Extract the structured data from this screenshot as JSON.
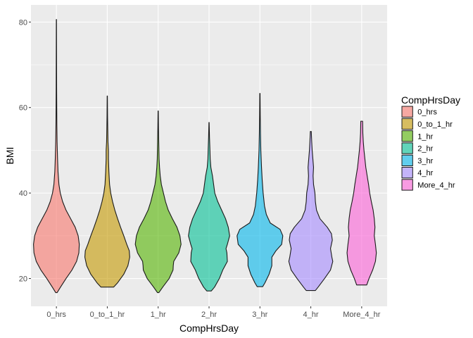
{
  "chart_data": {
    "type": "violin",
    "xlabel": "CompHrsDay",
    "ylabel": "BMI",
    "ylim": [
      13.5,
      84
    ],
    "yticks": [
      20,
      40,
      60,
      80
    ],
    "grid": true,
    "legend": {
      "title": "CompHrsDay",
      "position": "right"
    },
    "categories": [
      "0_hrs",
      "0_to_1_hr",
      "1_hr",
      "2_hr",
      "3_hr",
      "4_hr",
      "More_4_hr"
    ],
    "colors": [
      "#F8766D",
      "#C49A00",
      "#53B400",
      "#00C094",
      "#00B6EB",
      "#A58AFF",
      "#FB61D7"
    ],
    "series": [
      {
        "name": "0_hrs",
        "min": 16.7,
        "max": 80.6,
        "density": [
          [
            16.7,
            0.03
          ],
          [
            18,
            0.18
          ],
          [
            20,
            0.42
          ],
          [
            22,
            0.68
          ],
          [
            24,
            0.88
          ],
          [
            26,
            0.98
          ],
          [
            28,
            1.0
          ],
          [
            30,
            0.95
          ],
          [
            32,
            0.82
          ],
          [
            34,
            0.62
          ],
          [
            36,
            0.42
          ],
          [
            38,
            0.27
          ],
          [
            40,
            0.17
          ],
          [
            42,
            0.11
          ],
          [
            45,
            0.07
          ],
          [
            48,
            0.05
          ],
          [
            52,
            0.03
          ],
          [
            56,
            0.02
          ],
          [
            60,
            0.015
          ],
          [
            65,
            0.01
          ],
          [
            70,
            0.008
          ],
          [
            75,
            0.006
          ],
          [
            80.6,
            0.004
          ]
        ]
      },
      {
        "name": "0_to_1_hr",
        "min": 18.0,
        "max": 62.7,
        "density": [
          [
            18,
            0.28
          ],
          [
            19,
            0.45
          ],
          [
            21,
            0.72
          ],
          [
            23,
            0.9
          ],
          [
            25,
            0.98
          ],
          [
            26.5,
            0.96
          ],
          [
            28,
            0.85
          ],
          [
            30,
            0.72
          ],
          [
            32,
            0.58
          ],
          [
            34,
            0.45
          ],
          [
            36,
            0.33
          ],
          [
            38,
            0.23
          ],
          [
            40,
            0.15
          ],
          [
            42,
            0.1
          ],
          [
            45,
            0.07
          ],
          [
            48,
            0.05
          ],
          [
            50,
            0.05
          ],
          [
            52,
            0.03
          ],
          [
            55,
            0.02
          ],
          [
            58,
            0.012
          ],
          [
            62.7,
            0.005
          ]
        ]
      },
      {
        "name": "1_hr",
        "min": 16.7,
        "max": 59.2,
        "density": [
          [
            16.7,
            0.03
          ],
          [
            18,
            0.2
          ],
          [
            20,
            0.48
          ],
          [
            22,
            0.65
          ],
          [
            23,
            0.66
          ],
          [
            24,
            0.68
          ],
          [
            26,
            0.9
          ],
          [
            28,
            1.0
          ],
          [
            30,
            0.95
          ],
          [
            32,
            0.82
          ],
          [
            34,
            0.62
          ],
          [
            36,
            0.44
          ],
          [
            38,
            0.32
          ],
          [
            40,
            0.23
          ],
          [
            42,
            0.14
          ],
          [
            44,
            0.09
          ],
          [
            46,
            0.06
          ],
          [
            48,
            0.04
          ],
          [
            52,
            0.025
          ],
          [
            55,
            0.015
          ],
          [
            59.2,
            0.005
          ]
        ]
      },
      {
        "name": "2_hr",
        "min": 17.1,
        "max": 56.5,
        "density": [
          [
            17.1,
            0.1
          ],
          [
            18,
            0.24
          ],
          [
            20,
            0.45
          ],
          [
            22,
            0.6
          ],
          [
            24,
            0.8
          ],
          [
            26,
            0.78
          ],
          [
            27,
            0.74
          ],
          [
            28,
            0.8
          ],
          [
            30,
            0.9
          ],
          [
            32,
            0.84
          ],
          [
            34,
            0.72
          ],
          [
            36,
            0.55
          ],
          [
            38,
            0.38
          ],
          [
            40,
            0.25
          ],
          [
            42,
            0.2
          ],
          [
            44,
            0.15
          ],
          [
            46,
            0.08
          ],
          [
            48,
            0.05
          ],
          [
            50,
            0.04
          ],
          [
            53,
            0.02
          ],
          [
            56.5,
            0.005
          ]
        ]
      },
      {
        "name": "3_hr",
        "min": 18.1,
        "max": 63.3,
        "density": [
          [
            18.1,
            0.12
          ],
          [
            19,
            0.22
          ],
          [
            21,
            0.4
          ],
          [
            23,
            0.52
          ],
          [
            25,
            0.52
          ],
          [
            26.5,
            0.7
          ],
          [
            28,
            0.95
          ],
          [
            30,
            1.0
          ],
          [
            31.5,
            0.88
          ],
          [
            33,
            0.45
          ],
          [
            35,
            0.28
          ],
          [
            37,
            0.2
          ],
          [
            40,
            0.14
          ],
          [
            43,
            0.1
          ],
          [
            46,
            0.07
          ],
          [
            50,
            0.04
          ],
          [
            54,
            0.025
          ],
          [
            58,
            0.015
          ],
          [
            63.3,
            0.006
          ]
        ]
      },
      {
        "name": "4_hr",
        "min": 17.2,
        "max": 54.4,
        "density": [
          [
            17.2,
            0.2
          ],
          [
            18,
            0.32
          ],
          [
            20,
            0.6
          ],
          [
            22,
            0.86
          ],
          [
            24,
            0.96
          ],
          [
            25,
            0.92
          ],
          [
            27,
            0.86
          ],
          [
            29,
            0.94
          ],
          [
            30.5,
            0.9
          ],
          [
            32,
            0.72
          ],
          [
            34,
            0.4
          ],
          [
            36,
            0.25
          ],
          [
            38,
            0.2
          ],
          [
            40,
            0.18
          ],
          [
            42,
            0.12
          ],
          [
            44,
            0.1
          ],
          [
            46,
            0.12
          ],
          [
            48,
            0.09
          ],
          [
            50,
            0.06
          ],
          [
            52,
            0.04
          ],
          [
            54.4,
            0.02
          ]
        ]
      },
      {
        "name": "More_4_hr",
        "min": 18.5,
        "max": 56.8,
        "density": [
          [
            18.5,
            0.22
          ],
          [
            20,
            0.32
          ],
          [
            22,
            0.48
          ],
          [
            24,
            0.6
          ],
          [
            26,
            0.64
          ],
          [
            28,
            0.6
          ],
          [
            30,
            0.55
          ],
          [
            32,
            0.58
          ],
          [
            34,
            0.55
          ],
          [
            36,
            0.5
          ],
          [
            38,
            0.42
          ],
          [
            40,
            0.35
          ],
          [
            42,
            0.3
          ],
          [
            44,
            0.24
          ],
          [
            46,
            0.18
          ],
          [
            48,
            0.14
          ],
          [
            50,
            0.1
          ],
          [
            52,
            0.07
          ],
          [
            54,
            0.05
          ],
          [
            56.8,
            0.04
          ]
        ]
      }
    ]
  }
}
